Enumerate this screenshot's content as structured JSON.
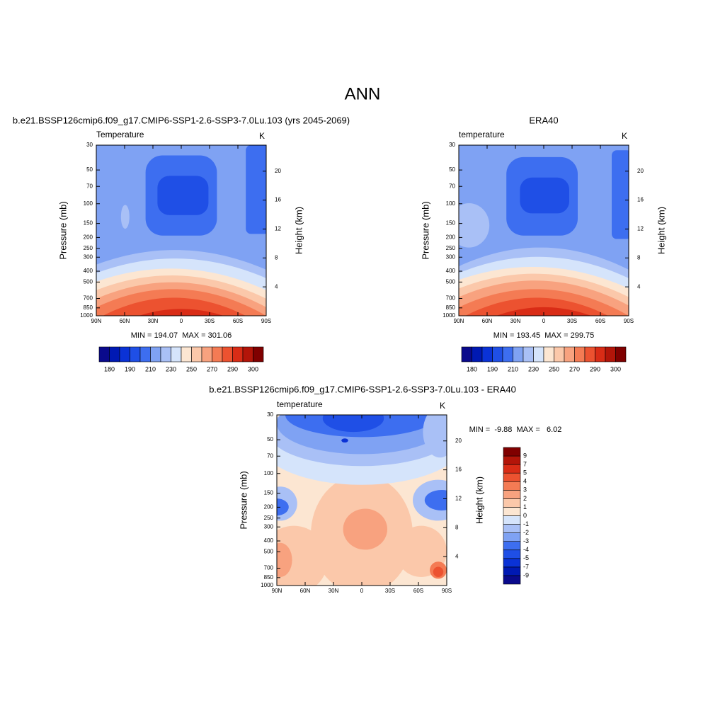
{
  "title": "ANN",
  "chart_data": [
    {
      "type": "contour",
      "title": "b.e21.BSSP126cmip6.f09_g17.CMIP6-SSP1-2.6-SSP3-7.0Lu.103 (yrs 2045-2069)",
      "left_string": "Temperature",
      "right_string": "K",
      "ylabel": "Pressure (mb)",
      "y2label": "Height (km)",
      "xlim": [
        90,
        -90
      ],
      "xticks": [
        {
          "value": 90,
          "label": "90N"
        },
        {
          "value": 60,
          "label": "60N"
        },
        {
          "value": 30,
          "label": "30N"
        },
        0,
        {
          "value": -30,
          "label": "30S"
        },
        {
          "value": -60,
          "label": "60S"
        },
        {
          "value": -90,
          "label": "90S"
        }
      ],
      "ylim": [
        1000,
        30
      ],
      "log_y": true,
      "yticks": [
        30,
        50,
        70,
        100,
        150,
        200,
        250,
        300,
        400,
        500,
        700,
        850,
        1000
      ],
      "y2lim": [
        0,
        23.6
      ],
      "y2ticks": [
        4,
        8,
        12,
        16,
        20
      ],
      "min_max": "MIN = 194.07  MAX = 301.06",
      "colorbar": {
        "orientation": "horizontal",
        "labels": [
          180,
          190,
          210,
          230,
          250,
          270,
          290,
          300
        ],
        "colors": [
          "#0a0a8c",
          "#0019b3",
          "#0a32d6",
          "#1f4fe6",
          "#3d6ef0",
          "#7fa2f3",
          "#a9c0f6",
          "#d5e4fb",
          "#fce6d2",
          "#fbc8aa",
          "#f8a27f",
          "#f47b54",
          "#ec5230",
          "#d92c16",
          "#b31509",
          "#800000"
        ]
      }
    },
    {
      "type": "contour",
      "title": "ERA40",
      "left_string": "temperature",
      "right_string": "K",
      "ylabel": "Pressure (mb)",
      "y2label": "Height (km)",
      "xlim": [
        90,
        -90
      ],
      "xticks": [
        {
          "value": 90,
          "label": "90N"
        },
        {
          "value": 60,
          "label": "60N"
        },
        {
          "value": 30,
          "label": "30N"
        },
        0,
        {
          "value": -30,
          "label": "30S"
        },
        {
          "value": -60,
          "label": "60S"
        },
        {
          "value": -90,
          "label": "90S"
        }
      ],
      "ylim": [
        1000,
        30
      ],
      "log_y": true,
      "yticks": [
        30,
        50,
        70,
        100,
        150,
        200,
        250,
        300,
        400,
        500,
        700,
        850,
        1000
      ],
      "y2lim": [
        0,
        23.6
      ],
      "y2ticks": [
        4,
        8,
        12,
        16,
        20
      ],
      "min_max": "MIN = 193.45  MAX = 299.75",
      "colorbar": {
        "orientation": "horizontal",
        "labels": [
          180,
          190,
          210,
          230,
          250,
          270,
          290,
          300
        ],
        "colors": [
          "#0a0a8c",
          "#0019b3",
          "#0a32d6",
          "#1f4fe6",
          "#3d6ef0",
          "#7fa2f3",
          "#a9c0f6",
          "#d5e4fb",
          "#fce6d2",
          "#fbc8aa",
          "#f8a27f",
          "#f47b54",
          "#ec5230",
          "#d92c16",
          "#b31509",
          "#800000"
        ]
      }
    },
    {
      "type": "contour",
      "title": "b.e21.BSSP126cmip6.f09_g17.CMIP6-SSP1-2.6-SSP3-7.0Lu.103 - ERA40",
      "left_string": "temperature",
      "right_string": "K",
      "ylabel": "Pressure (mb)",
      "y2label": "Height (km)",
      "xlim": [
        90,
        -90
      ],
      "xticks": [
        {
          "value": 90,
          "label": "90N"
        },
        {
          "value": 60,
          "label": "60N"
        },
        {
          "value": 30,
          "label": "30N"
        },
        0,
        {
          "value": -30,
          "label": "30S"
        },
        {
          "value": -60,
          "label": "60S"
        },
        {
          "value": -90,
          "label": "90S"
        }
      ],
      "ylim": [
        1000,
        30
      ],
      "log_y": true,
      "yticks": [
        30,
        50,
        70,
        100,
        150,
        200,
        250,
        300,
        400,
        500,
        700,
        850,
        1000
      ],
      "y2lim": [
        0,
        23.6
      ],
      "y2ticks": [
        4,
        8,
        12,
        16,
        20
      ],
      "min_max": "MIN =  -9.88  MAX =   6.02",
      "colorbar": {
        "orientation": "vertical",
        "labels": [
          -9,
          -7,
          -5,
          -4,
          -3,
          -2,
          -1,
          0,
          1,
          2,
          3,
          4,
          5,
          7,
          9
        ],
        "colors": [
          "#0a0a8c",
          "#0019b3",
          "#0a32d6",
          "#1f4fe6",
          "#3d6ef0",
          "#7fa2f3",
          "#a9c0f6",
          "#d5e4fb",
          "#fce6d2",
          "#fbc8aa",
          "#f8a27f",
          "#f47b54",
          "#ec5230",
          "#d92c16",
          "#b31509",
          "#800000"
        ]
      }
    }
  ]
}
